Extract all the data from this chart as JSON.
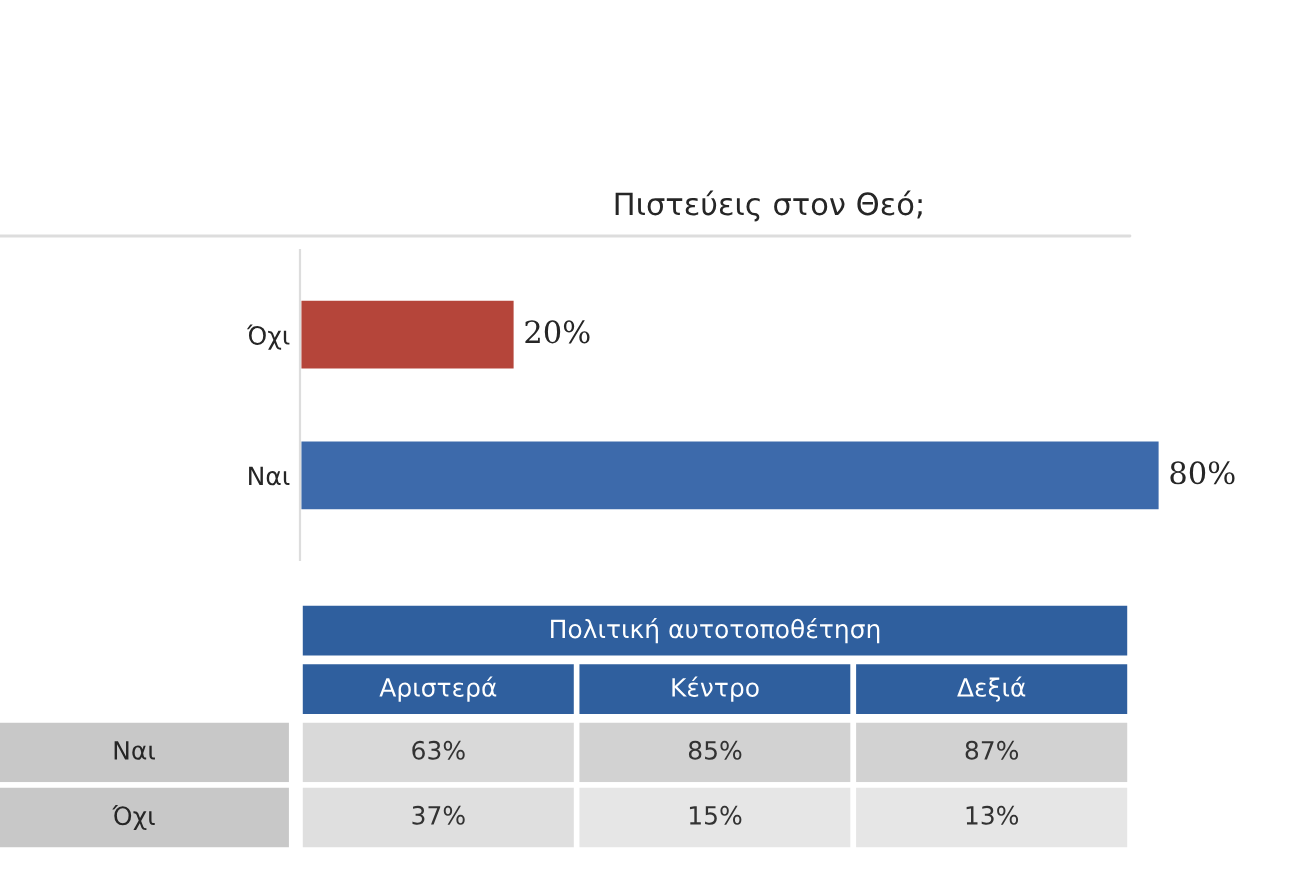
{
  "chart_data": [
    {
      "type": "bar",
      "orientation": "horizontal",
      "title": "Πιστεύεις στον Θεό;",
      "categories": [
        "Όχι",
        "Ναι"
      ],
      "values": [
        20,
        80
      ],
      "colors": [
        "#b5453a",
        "#3d6aab"
      ],
      "value_labels": [
        "20%",
        "80%"
      ],
      "xlim": [
        0,
        80
      ],
      "tick_labels": "y",
      "grid": false,
      "legend": false
    },
    {
      "type": "heatmap",
      "title": "Πολιτική αυτοτοποθέτηση",
      "categories": [
        "Αριστερά",
        "Κέντρο",
        "Δεξιά"
      ],
      "y_categories": [
        "Ναι",
        "Όχι"
      ],
      "cells": [
        [
          63,
          85,
          87
        ],
        [
          37,
          15,
          13
        ]
      ],
      "cell_labels": [
        [
          "63%",
          "85%",
          "87%"
        ],
        [
          "37%",
          "15%",
          "13%"
        ]
      ]
    }
  ]
}
